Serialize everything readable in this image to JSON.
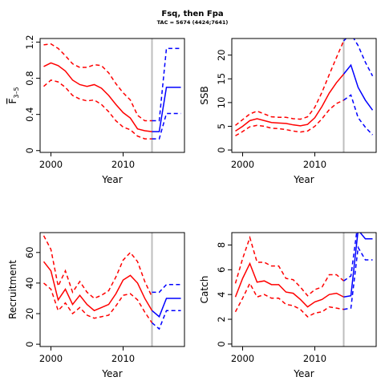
{
  "figure": {
    "title": "Fsq, then Fpa",
    "subtitle": "TAC = 5674 (4424;7641)"
  },
  "colors": {
    "historic": "#ff0000",
    "projection": "#0000ff",
    "vline": "#bebebe"
  },
  "chart_data": [
    {
      "type": "line",
      "panel": "F",
      "xlabel": "Year",
      "ylabel": "F",
      "ylabel_sub": "3–5",
      "xlim": [
        1998.5,
        2018.5
      ],
      "ylim": [
        -0.02,
        1.24
      ],
      "xticks": [
        2000,
        2010
      ],
      "yticks": [
        0,
        0.4,
        0.8,
        1.2
      ],
      "vline": 2014,
      "historic": {
        "x": [
          1999,
          2000,
          2001,
          2002,
          2003,
          2004,
          2005,
          2006,
          2007,
          2008,
          2009,
          2010,
          2011,
          2012,
          2013,
          2014
        ],
        "mid": [
          0.93,
          0.97,
          0.94,
          0.88,
          0.78,
          0.73,
          0.71,
          0.73,
          0.69,
          0.61,
          0.51,
          0.42,
          0.36,
          0.24,
          0.22,
          0.21
        ],
        "lo": [
          0.71,
          0.78,
          0.76,
          0.7,
          0.61,
          0.57,
          0.55,
          0.56,
          0.51,
          0.43,
          0.33,
          0.26,
          0.23,
          0.16,
          0.13,
          0.13
        ],
        "hi": [
          1.17,
          1.18,
          1.13,
          1.05,
          0.96,
          0.92,
          0.92,
          0.95,
          0.94,
          0.86,
          0.74,
          0.64,
          0.56,
          0.39,
          0.33,
          0.33
        ]
      },
      "projection": {
        "x": [
          2014,
          2015,
          2016,
          2017,
          2018
        ],
        "mid": [
          0.21,
          0.21,
          0.7,
          0.7,
          0.7
        ],
        "lo": [
          0.13,
          0.13,
          0.41,
          0.41,
          0.41
        ],
        "hi": [
          0.33,
          0.33,
          1.13,
          1.13,
          1.13
        ]
      }
    },
    {
      "type": "line",
      "panel": "SSB",
      "xlabel": "Year",
      "ylabel": "SSB",
      "xlim": [
        1998.5,
        2018.5
      ],
      "ylim": [
        -0.5,
        23.5
      ],
      "xticks": [
        2000,
        2010
      ],
      "yticks": [
        0,
        5,
        10,
        15,
        20
      ],
      "vline": 2014,
      "historic": {
        "x": [
          1999,
          2000,
          2001,
          2002,
          2003,
          2004,
          2005,
          2006,
          2007,
          2008,
          2009,
          2010,
          2011,
          2012,
          2013,
          2014
        ],
        "mid": [
          4.0,
          5.0,
          6.2,
          6.6,
          6.2,
          5.8,
          5.7,
          5.6,
          5.3,
          5.1,
          5.4,
          6.8,
          9.2,
          12.0,
          14.2,
          16.0
        ],
        "lo": [
          3.0,
          3.9,
          4.9,
          5.2,
          5.0,
          4.6,
          4.5,
          4.3,
          4.0,
          3.8,
          4.0,
          5.0,
          6.6,
          8.5,
          9.8,
          10.5
        ],
        "hi": [
          5.2,
          6.4,
          7.6,
          8.2,
          7.6,
          7.0,
          6.9,
          6.9,
          6.6,
          6.5,
          7.0,
          9.0,
          12.2,
          15.9,
          19.5,
          23.0
        ]
      },
      "projection": {
        "x": [
          2014,
          2015,
          2016,
          2017,
          2018
        ],
        "mid": [
          16.0,
          17.9,
          13.2,
          10.5,
          8.4
        ],
        "lo": [
          10.5,
          11.6,
          6.8,
          4.8,
          3.2
        ],
        "hi": [
          23.0,
          24.5,
          22.0,
          18.5,
          15.6
        ]
      }
    },
    {
      "type": "line",
      "panel": "Recruitment",
      "xlabel": "Year",
      "ylabel": "Recruitment",
      "xlim": [
        1998.5,
        2018.5
      ],
      "ylim": [
        -1.5,
        73
      ],
      "xticks": [
        2000,
        2010
      ],
      "yticks": [
        0,
        20,
        40,
        60
      ],
      "vline": 2014,
      "historic": {
        "x": [
          1999,
          2000,
          2001,
          2002,
          2003,
          2004,
          2005,
          2006,
          2007,
          2008,
          2009,
          2010,
          2011,
          2012,
          2013,
          2014
        ],
        "mid": [
          54,
          48,
          29,
          36,
          26,
          32,
          26,
          22,
          24,
          26,
          33,
          42,
          45,
          40,
          30,
          22
        ],
        "lo": [
          40,
          36,
          22,
          27,
          20,
          24,
          19,
          17,
          18,
          19,
          25,
          32,
          33,
          29,
          21,
          14
        ],
        "hi": [
          71,
          62,
          38,
          48,
          34,
          41,
          34,
          30,
          32,
          35,
          44,
          55,
          60,
          54,
          41,
          31
        ]
      },
      "projection": {
        "x": [
          2014,
          2015,
          2016,
          2017,
          2018
        ],
        "mid": [
          22,
          18,
          30,
          30,
          30
        ],
        "lo": [
          14,
          10,
          22,
          22,
          22
        ],
        "hi": [
          34,
          34,
          39,
          39,
          39
        ]
      }
    },
    {
      "type": "line",
      "panel": "Catch",
      "xlabel": "Year",
      "ylabel": "Catch",
      "xlim": [
        1998.5,
        2018.5
      ],
      "ylim": [
        -0.2,
        9.0
      ],
      "xticks": [
        2000,
        2010
      ],
      "yticks": [
        0,
        2,
        4,
        6,
        8
      ],
      "vline": 2014,
      "historic": {
        "x": [
          1999,
          2000,
          2001,
          2002,
          2003,
          2004,
          2005,
          2006,
          2007,
          2008,
          2009,
          2010,
          2011,
          2012,
          2013,
          2014
        ],
        "mid": [
          3.8,
          5.3,
          6.5,
          5.0,
          5.1,
          4.8,
          4.8,
          4.2,
          4.1,
          3.6,
          3.0,
          3.4,
          3.6,
          4.0,
          4.1,
          3.8
        ],
        "lo": [
          2.6,
          3.7,
          4.9,
          3.8,
          4.0,
          3.7,
          3.7,
          3.2,
          3.1,
          2.8,
          2.2,
          2.5,
          2.6,
          3.0,
          2.9,
          2.8
        ],
        "hi": [
          4.9,
          6.9,
          8.6,
          6.6,
          6.6,
          6.3,
          6.3,
          5.3,
          5.2,
          4.6,
          3.9,
          4.4,
          4.6,
          5.6,
          5.6,
          5.1
        ]
      },
      "projection": {
        "x": [
          2014,
          2015,
          2016,
          2017,
          2018
        ],
        "mid": [
          3.8,
          3.9,
          9.2,
          8.5,
          8.5
        ],
        "lo": [
          2.8,
          2.9,
          7.8,
          6.8,
          6.8
        ],
        "hi": [
          5.1,
          5.5,
          9.9,
          9.5,
          9.5
        ]
      }
    }
  ]
}
